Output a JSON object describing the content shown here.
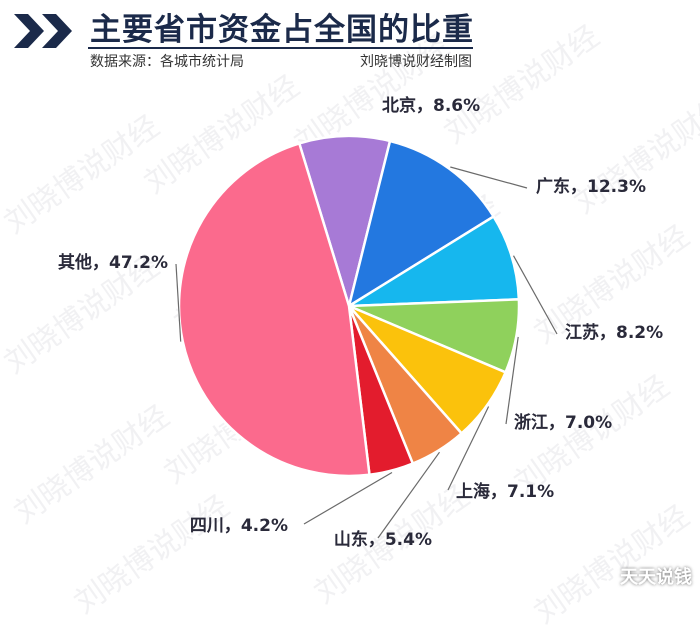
{
  "header": {
    "title": "主要省市资金占全国的比重",
    "source": "数据来源：各城市统计局",
    "credit": "刘晓博说财经制图"
  },
  "watermark_text": "刘晓博说财经",
  "corner_mark": "天天说钱",
  "colors": {
    "title": "#1b2a4a",
    "chevron": "#1b2a4a",
    "leader": "#6a6a6a"
  },
  "chart_data": {
    "type": "pie",
    "title": "主要省市资金占全国的比重",
    "unit": "%",
    "slices": [
      {
        "label": "北京",
        "value": 8.6,
        "color": "#a77ad6",
        "display": "北京，8.6%"
      },
      {
        "label": "广东",
        "value": 12.3,
        "color": "#2378e0",
        "display": "广东，12.3%"
      },
      {
        "label": "江苏",
        "value": 8.2,
        "color": "#16b7ee",
        "display": "江苏，8.2%"
      },
      {
        "label": "浙江",
        "value": 7.0,
        "color": "#8fd15c",
        "display": "浙江，7.0%"
      },
      {
        "label": "上海",
        "value": 7.1,
        "color": "#fbc20c",
        "display": "上海，7.1%"
      },
      {
        "label": "山东",
        "value": 5.4,
        "color": "#ef8445",
        "display": "山东，5.4%"
      },
      {
        "label": "四川",
        "value": 4.2,
        "color": "#e31c2d",
        "display": "四川，4.2%"
      },
      {
        "label": "其他",
        "value": 47.2,
        "color": "#fb6a8d",
        "display": "其他，47.2%"
      }
    ]
  }
}
